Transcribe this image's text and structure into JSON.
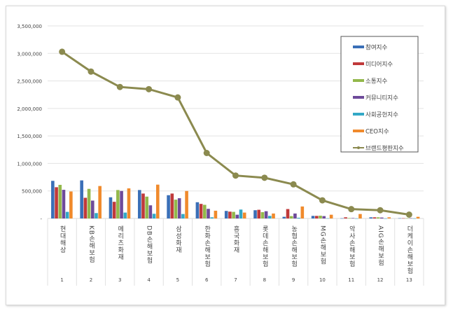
{
  "chart_data": {
    "type": "bar",
    "title": "",
    "xlabel": "",
    "ylabel": "",
    "ylim": [
      0,
      3500000
    ],
    "yticks": [
      "-",
      "500,000",
      "1,000,000",
      "1,500,000",
      "2,000,000",
      "2,500,000",
      "3,000,000",
      "3,500,000"
    ],
    "grid": true,
    "legend_position": "top-right",
    "categories": [
      "현대해상",
      "KB손해보험",
      "메리츠화재",
      "DB손해보험",
      "삼성화재",
      "한화손해보험",
      "흥국화재",
      "롯데손해보험",
      "농협손해보험",
      "MG손해보험",
      "악사손해보험",
      "AIG손해보험",
      "더케이손해보험"
    ],
    "ranks": [
      "1",
      "2",
      "3",
      "4",
      "5",
      "6",
      "7",
      "8",
      "9",
      "10",
      "11",
      "12",
      "13"
    ],
    "series": [
      {
        "name": "참여지수",
        "color": "#3a6fb7",
        "values": [
          684000,
          692000,
          385000,
          517000,
          423000,
          295000,
          137000,
          150000,
          30000,
          47000,
          4000,
          21000,
          5000
        ]
      },
      {
        "name": "미디어지수",
        "color": "#c0393a",
        "values": [
          568000,
          376000,
          303000,
          453000,
          453000,
          265000,
          124000,
          158000,
          171000,
          47000,
          21000,
          21000,
          5000
        ]
      },
      {
        "name": "소통지수",
        "color": "#93b84b",
        "values": [
          611000,
          538000,
          517000,
          397000,
          342000,
          248000,
          120000,
          115000,
          43000,
          51000,
          8000,
          21000,
          5000
        ]
      },
      {
        "name": "커뮤니티지수",
        "color": "#6e4a9a",
        "values": [
          521000,
          325000,
          500000,
          239000,
          368000,
          175000,
          68000,
          132000,
          90000,
          43000,
          8000,
          17000,
          5000
        ]
      },
      {
        "name": "사회공헌지수",
        "color": "#32a8c6",
        "values": [
          120000,
          98000,
          107000,
          85000,
          81000,
          21000,
          162000,
          47000,
          13000,
          4000,
          2000,
          2000,
          2000
        ]
      },
      {
        "name": "CEO지수",
        "color": "#f08a2c",
        "values": [
          491000,
          590000,
          547000,
          615000,
          500000,
          141000,
          107000,
          90000,
          218000,
          68000,
          81000,
          21000,
          30000
        ]
      },
      {
        "name": "브랜드평판지수",
        "color": "#8b8a4f",
        "type": "line",
        "values": [
          3030000,
          2670000,
          2390000,
          2350000,
          2200000,
          1190000,
          780000,
          740000,
          620000,
          330000,
          170000,
          150000,
          70000
        ]
      }
    ]
  }
}
